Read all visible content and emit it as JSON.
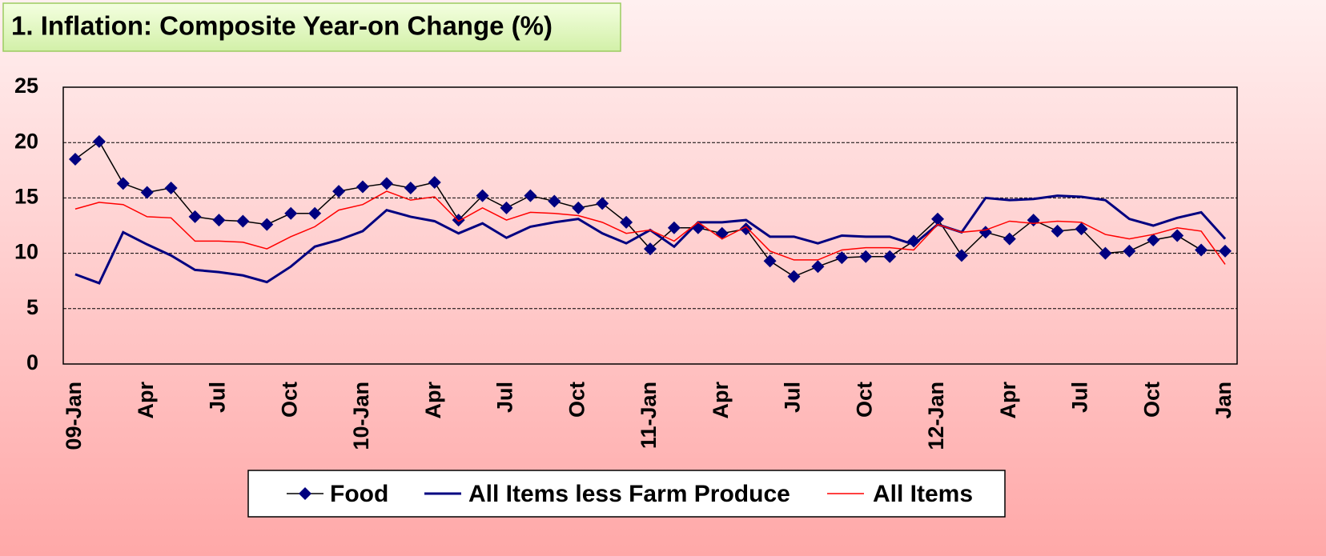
{
  "chart_data": {
    "type": "line",
    "title": "1. Inflation: Composite Year-on Change (%)",
    "categories": [
      "09-Jan",
      null,
      null,
      "Apr",
      null,
      null,
      "Jul",
      null,
      null,
      "Oct",
      null,
      null,
      "10-Jan",
      null,
      null,
      "Apr",
      null,
      null,
      "Jul",
      null,
      null,
      "Oct",
      null,
      null,
      "11-Jan",
      null,
      null,
      "Apr",
      null,
      null,
      "Jul",
      null,
      null,
      "Oct",
      null,
      null,
      "12-Jan",
      null,
      null,
      "Apr",
      null,
      null,
      "Jul",
      null,
      null,
      "Oct",
      null,
      null,
      "Jan"
    ],
    "series": [
      {
        "name": "Food",
        "color": "#000080",
        "marker": "diamond",
        "values": [
          18.5,
          20.1,
          16.3,
          15.5,
          15.9,
          13.3,
          13.0,
          12.9,
          12.6,
          13.6,
          13.6,
          15.6,
          16.0,
          16.3,
          15.9,
          16.4,
          13.0,
          15.2,
          14.1,
          15.2,
          14.7,
          14.1,
          14.5,
          12.8,
          10.4,
          12.3,
          12.3,
          11.8,
          12.2,
          9.3,
          7.9,
          8.8,
          9.6,
          9.7,
          9.7,
          11.1,
          13.1,
          9.8,
          11.9,
          11.3,
          13.0,
          12.0,
          12.2,
          10.0,
          10.2,
          11.2,
          11.6,
          10.3,
          10.2
        ]
      },
      {
        "name": "All Items less Farm Produce",
        "color": "#000080",
        "values": [
          8.1,
          7.3,
          11.9,
          10.8,
          9.8,
          8.5,
          8.3,
          8.0,
          7.4,
          8.8,
          10.6,
          11.2,
          12.0,
          13.9,
          13.3,
          12.9,
          11.8,
          12.7,
          11.4,
          12.4,
          12.8,
          13.1,
          11.8,
          10.9,
          12.1,
          10.6,
          12.8,
          12.8,
          13.0,
          11.5,
          11.5,
          10.9,
          11.6,
          11.5,
          11.5,
          10.8,
          12.6,
          11.9,
          15.0,
          14.8,
          14.9,
          15.2,
          15.1,
          14.8,
          13.1,
          12.5,
          13.2,
          13.7,
          11.3
        ]
      },
      {
        "name": "All Items",
        "color": "#ff0000",
        "values": [
          14.0,
          14.6,
          14.4,
          13.3,
          13.2,
          11.1,
          11.1,
          11.0,
          10.4,
          11.5,
          12.4,
          13.9,
          14.4,
          15.6,
          14.8,
          15.1,
          12.9,
          14.1,
          13.0,
          13.7,
          13.6,
          13.4,
          12.8,
          11.8,
          12.1,
          11.1,
          12.8,
          11.3,
          12.4,
          10.2,
          9.4,
          9.4,
          10.3,
          10.5,
          10.5,
          10.3,
          12.6,
          11.9,
          12.1,
          12.9,
          12.7,
          12.9,
          12.8,
          11.7,
          11.3,
          11.7,
          12.3,
          12.0,
          9.0
        ]
      }
    ],
    "ylim": [
      0,
      25
    ],
    "yticks": [
      0,
      5,
      10,
      15,
      20,
      25
    ],
    "grid": true,
    "legend": "bottom"
  }
}
